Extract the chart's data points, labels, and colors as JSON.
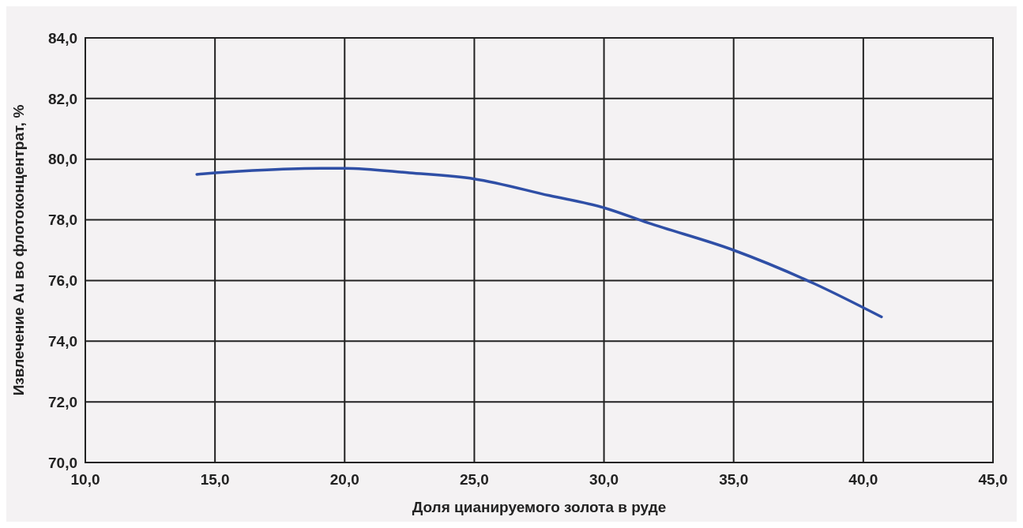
{
  "chart_data": {
    "type": "line",
    "xlabel": "Доля цианируемого золота в руде",
    "ylabel": "Извлечение Au во флотоконцентрат, %",
    "series": [
      {
        "color": "#2f4fa6",
        "x": [
          14.3,
          15,
          17,
          19.1,
          20,
          22.5,
          25,
          27.9,
          30,
          31.7,
          35,
          38.1,
          40.7
        ],
        "values": [
          79.5,
          79.55,
          79.65,
          79.7,
          79.7,
          79.55,
          79.35,
          78.8,
          78.4,
          77.9,
          77.0,
          75.9,
          74.8
        ]
      }
    ],
    "xlim": [
      10,
      45
    ],
    "xticks": [
      {
        "value": 10,
        "label": "10,0"
      },
      {
        "value": 15,
        "label": "15,0"
      },
      {
        "value": 20,
        "label": "20,0"
      },
      {
        "value": 25,
        "label": "25,0"
      },
      {
        "value": 30,
        "label": "30,0"
      },
      {
        "value": 35,
        "label": "35,0"
      },
      {
        "value": 40,
        "label": "40,0"
      },
      {
        "value": 45,
        "label": "45,0"
      }
    ],
    "ylim": [
      70,
      84
    ],
    "yticks": [
      {
        "value": 70,
        "label": "70,0"
      },
      {
        "value": 72,
        "label": "72,0"
      },
      {
        "value": 74,
        "label": "74,0"
      },
      {
        "value": 76,
        "label": "76,0"
      },
      {
        "value": 78,
        "label": "78,0"
      },
      {
        "value": 80,
        "label": "80,0"
      },
      {
        "value": 82,
        "label": "82,0"
      },
      {
        "value": 84,
        "label": "84,0"
      }
    ],
    "grid": true,
    "marker": "none",
    "line_style": "solid"
  }
}
